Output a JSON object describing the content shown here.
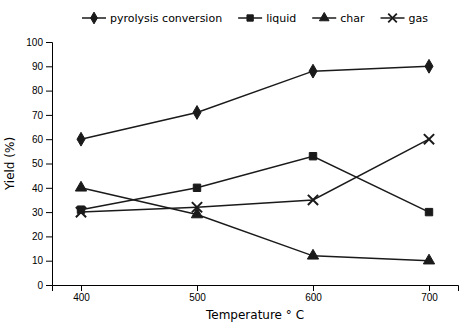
{
  "chart_data": {
    "type": "line",
    "x": [
      400,
      500,
      600,
      700
    ],
    "series": [
      {
        "name": "pyrolysis conversion",
        "color": "#1a1a1a",
        "marker": "diamond",
        "values": [
          60,
          71,
          88,
          90
        ]
      },
      {
        "name": "liquid",
        "color": "#1a1a1a",
        "marker": "square",
        "values": [
          31,
          40,
          53,
          30
        ]
      },
      {
        "name": "char",
        "color": "#1a1a1a",
        "marker": "triangle",
        "values": [
          40,
          29,
          12,
          10
        ]
      },
      {
        "name": "gas",
        "color": "#1a1a1a",
        "marker": "x",
        "values": [
          30,
          32,
          35,
          60
        ]
      }
    ],
    "xlabel": "Temperature ° C",
    "ylabel": "Yield (%)",
    "xlim": [
      375,
      725
    ],
    "ylim": [
      0,
      100
    ],
    "xticks": [
      400,
      500,
      600,
      700
    ],
    "yticks": [
      0,
      10,
      20,
      30,
      40,
      50,
      60,
      70,
      80,
      90,
      100
    ],
    "grid": false,
    "legend": "top"
  }
}
